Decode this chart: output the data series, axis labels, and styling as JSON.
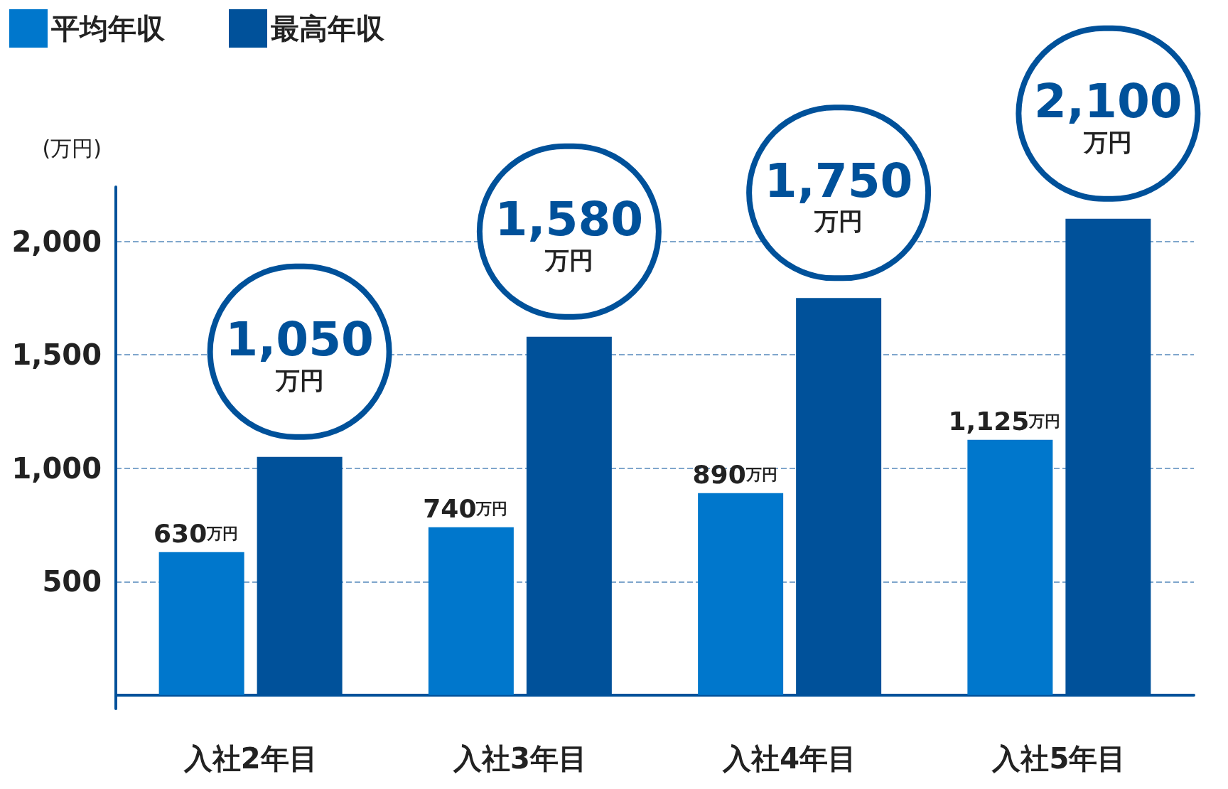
{
  "chart_data": {
    "type": "bar",
    "ylabel": "(万円)",
    "categories": [
      "入社2年目",
      "入社3年目",
      "入社4年目",
      "入社5年目"
    ],
    "series": [
      {
        "name": "平均年収",
        "color": "#0077cc",
        "values": [
          630,
          740,
          890,
          1125
        ],
        "value_labels": [
          "630万円",
          "740万円",
          "890万円",
          "1,125万円"
        ]
      },
      {
        "name": "最高年収",
        "color": "#00519a",
        "values": [
          1050,
          1580,
          1750,
          2100
        ],
        "value_labels": [
          "1,050万円",
          "1,580万円",
          "1,750万円",
          "2,100万円"
        ]
      }
    ],
    "ylim": [
      -60,
      2240
    ],
    "yticks": [
      500,
      {
        "value": 1000,
        "label": "1,000"
      },
      {
        "value": 1500,
        "label": "1,500"
      },
      {
        "value": 2000,
        "label": "2,000"
      }
    ],
    "grid": "y",
    "legend": "top left"
  }
}
